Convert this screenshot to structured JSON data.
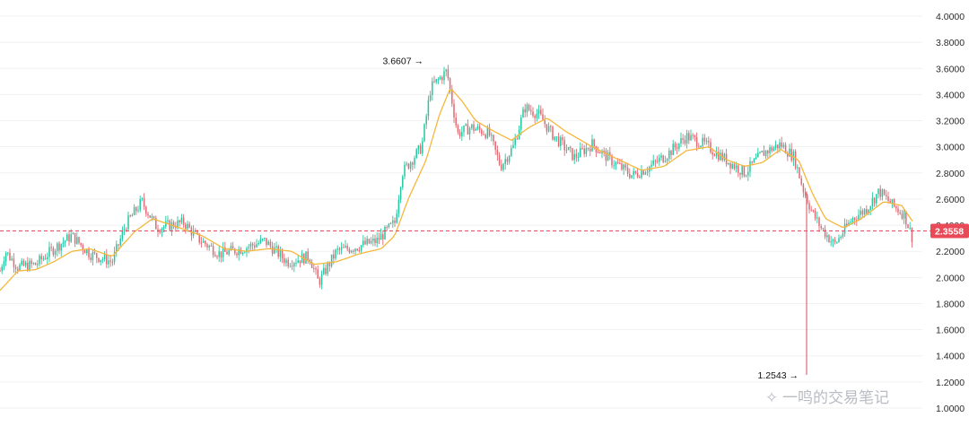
{
  "colors": {
    "up": "#26c6a0",
    "down": "#e06a74",
    "ma": "#f5b73b",
    "grid": "#f0f1f3",
    "price_line": "#e84a57",
    "badge": "#e84a57",
    "text": "#2b2b2b",
    "watermark": "#b9bcc2"
  },
  "chart_data": {
    "type": "candlestick",
    "ylim": [
      1.0,
      4.05
    ],
    "y_ticks": [
      "4.0000",
      "3.8000",
      "3.6000",
      "3.4000",
      "3.2000",
      "3.0000",
      "2.8000",
      "2.6000",
      "2.4000",
      "2.2000",
      "2.0000",
      "1.8000",
      "1.6000",
      "1.4000",
      "1.2000",
      "1.0000"
    ],
    "current_price": "2.3558",
    "annotations": [
      {
        "label": "3.6607",
        "value": 3.6607,
        "kind": "high"
      },
      {
        "label": "1.2543",
        "value": 1.2543,
        "kind": "low"
      }
    ],
    "price_path": [
      [
        0,
        2.05
      ],
      [
        6,
        2.2
      ],
      [
        20,
        2.08
      ],
      [
        40,
        2.1
      ],
      [
        60,
        2.22
      ],
      [
        80,
        2.32
      ],
      [
        100,
        2.18
      ],
      [
        125,
        2.12
      ],
      [
        140,
        2.4
      ],
      [
        158,
        2.58
      ],
      [
        175,
        2.38
      ],
      [
        205,
        2.42
      ],
      [
        220,
        2.3
      ],
      [
        245,
        2.18
      ],
      [
        270,
        2.22
      ],
      [
        295,
        2.28
      ],
      [
        320,
        2.12
      ],
      [
        345,
        2.16
      ],
      [
        355,
        1.96
      ],
      [
        375,
        2.2
      ],
      [
        400,
        2.24
      ],
      [
        420,
        2.28
      ],
      [
        440,
        2.42
      ],
      [
        448,
        2.8
      ],
      [
        470,
        3.0
      ],
      [
        480,
        3.45
      ],
      [
        498,
        3.58
      ],
      [
        510,
        3.1
      ],
      [
        525,
        3.15
      ],
      [
        545,
        3.1
      ],
      [
        558,
        2.85
      ],
      [
        572,
        3.0
      ],
      [
        585,
        3.3
      ],
      [
        600,
        3.25
      ],
      [
        615,
        3.1
      ],
      [
        640,
        2.92
      ],
      [
        660,
        3.02
      ],
      [
        680,
        2.9
      ],
      [
        705,
        2.78
      ],
      [
        725,
        2.85
      ],
      [
        745,
        2.95
      ],
      [
        765,
        3.08
      ],
      [
        785,
        3.02
      ],
      [
        805,
        2.92
      ],
      [
        830,
        2.8
      ],
      [
        850,
        2.95
      ],
      [
        870,
        3.02
      ],
      [
        885,
        2.92
      ],
      [
        895,
        2.68
      ],
      [
        905,
        2.5
      ],
      [
        915,
        2.38
      ],
      [
        930,
        2.25
      ],
      [
        950,
        2.45
      ],
      [
        965,
        2.52
      ],
      [
        980,
        2.66
      ],
      [
        995,
        2.55
      ],
      [
        1008,
        2.48
      ],
      [
        1017,
        2.3
      ]
    ],
    "ma_path": [
      [
        0,
        1.9
      ],
      [
        20,
        2.05
      ],
      [
        40,
        2.06
      ],
      [
        60,
        2.12
      ],
      [
        80,
        2.2
      ],
      [
        100,
        2.22
      ],
      [
        125,
        2.16
      ],
      [
        150,
        2.35
      ],
      [
        170,
        2.45
      ],
      [
        200,
        2.38
      ],
      [
        225,
        2.32
      ],
      [
        250,
        2.22
      ],
      [
        275,
        2.2
      ],
      [
        300,
        2.22
      ],
      [
        325,
        2.2
      ],
      [
        350,
        2.1
      ],
      [
        375,
        2.12
      ],
      [
        400,
        2.18
      ],
      [
        425,
        2.22
      ],
      [
        440,
        2.32
      ],
      [
        455,
        2.6
      ],
      [
        475,
        2.9
      ],
      [
        490,
        3.25
      ],
      [
        502,
        3.45
      ],
      [
        515,
        3.35
      ],
      [
        530,
        3.2
      ],
      [
        550,
        3.12
      ],
      [
        570,
        3.05
      ],
      [
        590,
        3.15
      ],
      [
        610,
        3.22
      ],
      [
        630,
        3.12
      ],
      [
        660,
        3.0
      ],
      [
        690,
        2.9
      ],
      [
        715,
        2.82
      ],
      [
        740,
        2.85
      ],
      [
        765,
        2.97
      ],
      [
        790,
        3.0
      ],
      [
        810,
        2.9
      ],
      [
        830,
        2.85
      ],
      [
        850,
        2.88
      ],
      [
        870,
        2.98
      ],
      [
        890,
        2.9
      ],
      [
        905,
        2.65
      ],
      [
        920,
        2.45
      ],
      [
        940,
        2.38
      ],
      [
        960,
        2.45
      ],
      [
        985,
        2.58
      ],
      [
        1005,
        2.55
      ],
      [
        1018,
        2.42
      ]
    ],
    "x_start": 0,
    "x_end": 1018,
    "wick_spike": {
      "x": 899,
      "to": 1.2543
    }
  },
  "watermark": {
    "text": "一鸣的交易笔记"
  }
}
